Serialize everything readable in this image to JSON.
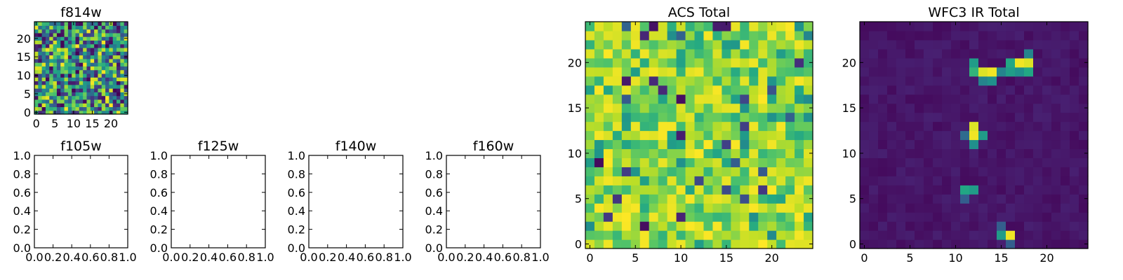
{
  "chart_data": [
    {
      "type": "heatmap",
      "title": "f814w",
      "size": 25,
      "xlim": [
        -0.5,
        24.5
      ],
      "ylim": [
        -0.5,
        24.5
      ],
      "xticks": [
        0,
        5,
        10,
        15,
        20
      ],
      "yticks": [
        0,
        5,
        10,
        15,
        20
      ],
      "colormap": "viridis",
      "value_range": [
        0.0,
        1.0
      ],
      "pattern": "uniform-noise",
      "seed": 814,
      "grid": false
    },
    {
      "type": "scatter",
      "title": "f105w",
      "xlim": [
        0,
        1
      ],
      "ylim": [
        0,
        1
      ],
      "xticks": [
        "0.0",
        "0.2",
        "0.4",
        "0.6",
        "0.8",
        "1.0"
      ],
      "yticks": [
        "0.0",
        "0.2",
        "0.4",
        "0.6",
        "0.8",
        "1.0"
      ],
      "points": [],
      "grid": false
    },
    {
      "type": "scatter",
      "title": "f125w",
      "xlim": [
        0,
        1
      ],
      "ylim": [
        0,
        1
      ],
      "xticks": [
        "0.0",
        "0.2",
        "0.4",
        "0.6",
        "0.8",
        "1.0"
      ],
      "yticks": [
        "0.0",
        "0.2",
        "0.4",
        "0.6",
        "0.8",
        "1.0"
      ],
      "points": [],
      "grid": false
    },
    {
      "type": "scatter",
      "title": "f140w",
      "xlim": [
        0,
        1
      ],
      "ylim": [
        0,
        1
      ],
      "xticks": [
        "0.0",
        "0.2",
        "0.4",
        "0.6",
        "0.8",
        "1.0"
      ],
      "yticks": [
        "0.0",
        "0.2",
        "0.4",
        "0.6",
        "0.8",
        "1.0"
      ],
      "points": [],
      "grid": false
    },
    {
      "type": "scatter",
      "title": "f160w",
      "xlim": [
        0,
        1
      ],
      "ylim": [
        0,
        1
      ],
      "xticks": [
        "0.0",
        "0.2",
        "0.4",
        "0.6",
        "0.8",
        "1.0"
      ],
      "yticks": [
        "0.0",
        "0.2",
        "0.4",
        "0.6",
        "0.8",
        "1.0"
      ],
      "points": [],
      "grid": false
    },
    {
      "type": "heatmap",
      "title": "ACS Total",
      "size": 25,
      "xlim": [
        -0.5,
        24.5
      ],
      "ylim": [
        -0.5,
        24.5
      ],
      "xticks": [
        0,
        5,
        10,
        15,
        20
      ],
      "yticks": [
        0,
        5,
        10,
        15,
        20
      ],
      "colormap": "viridis",
      "value_range": [
        0.0,
        1.0
      ],
      "pattern": "skewed-noise",
      "seed": 4242,
      "grid": false
    },
    {
      "type": "heatmap",
      "title": "WFC3 IR Total",
      "size": 25,
      "xlim": [
        -0.5,
        24.5
      ],
      "ylim": [
        -0.5,
        24.5
      ],
      "xticks": [
        0,
        5,
        10,
        15,
        20
      ],
      "yticks": [
        0,
        5,
        10,
        15,
        20
      ],
      "colormap": "viridis",
      "value_range": [
        0.0,
        1.0
      ],
      "background": [
        0.03,
        0.09
      ],
      "hot_pixels": [
        {
          "x": 12,
          "y": 20,
          "v": 0.55
        },
        {
          "x": 12,
          "y": 19,
          "v": 0.65
        },
        {
          "x": 13,
          "y": 19,
          "v": 0.95
        },
        {
          "x": 14,
          "y": 19,
          "v": 0.98
        },
        {
          "x": 13,
          "y": 18,
          "v": 0.45
        },
        {
          "x": 14,
          "y": 18,
          "v": 0.5
        },
        {
          "x": 15,
          "y": 19,
          "v": 0.45
        },
        {
          "x": 16,
          "y": 20,
          "v": 0.6
        },
        {
          "x": 17,
          "y": 20,
          "v": 0.98
        },
        {
          "x": 18,
          "y": 20,
          "v": 0.95
        },
        {
          "x": 18,
          "y": 21,
          "v": 0.45
        },
        {
          "x": 16,
          "y": 19,
          "v": 0.55
        },
        {
          "x": 17,
          "y": 19,
          "v": 0.5
        },
        {
          "x": 18,
          "y": 19,
          "v": 0.6
        },
        {
          "x": 12,
          "y": 13,
          "v": 0.95
        },
        {
          "x": 12,
          "y": 12,
          "v": 0.98
        },
        {
          "x": 11,
          "y": 12,
          "v": 0.35
        },
        {
          "x": 13,
          "y": 12,
          "v": 0.55
        },
        {
          "x": 12,
          "y": 11,
          "v": 0.5
        },
        {
          "x": 11,
          "y": 6,
          "v": 0.6
        },
        {
          "x": 12,
          "y": 6,
          "v": 0.55
        },
        {
          "x": 11,
          "y": 5,
          "v": 0.3
        },
        {
          "x": 15,
          "y": 2,
          "v": 0.3
        },
        {
          "x": 15,
          "y": 1,
          "v": 0.55
        },
        {
          "x": 16,
          "y": 1,
          "v": 0.98
        },
        {
          "x": 16,
          "y": 0,
          "v": 0.3
        }
      ],
      "grid": false
    }
  ]
}
